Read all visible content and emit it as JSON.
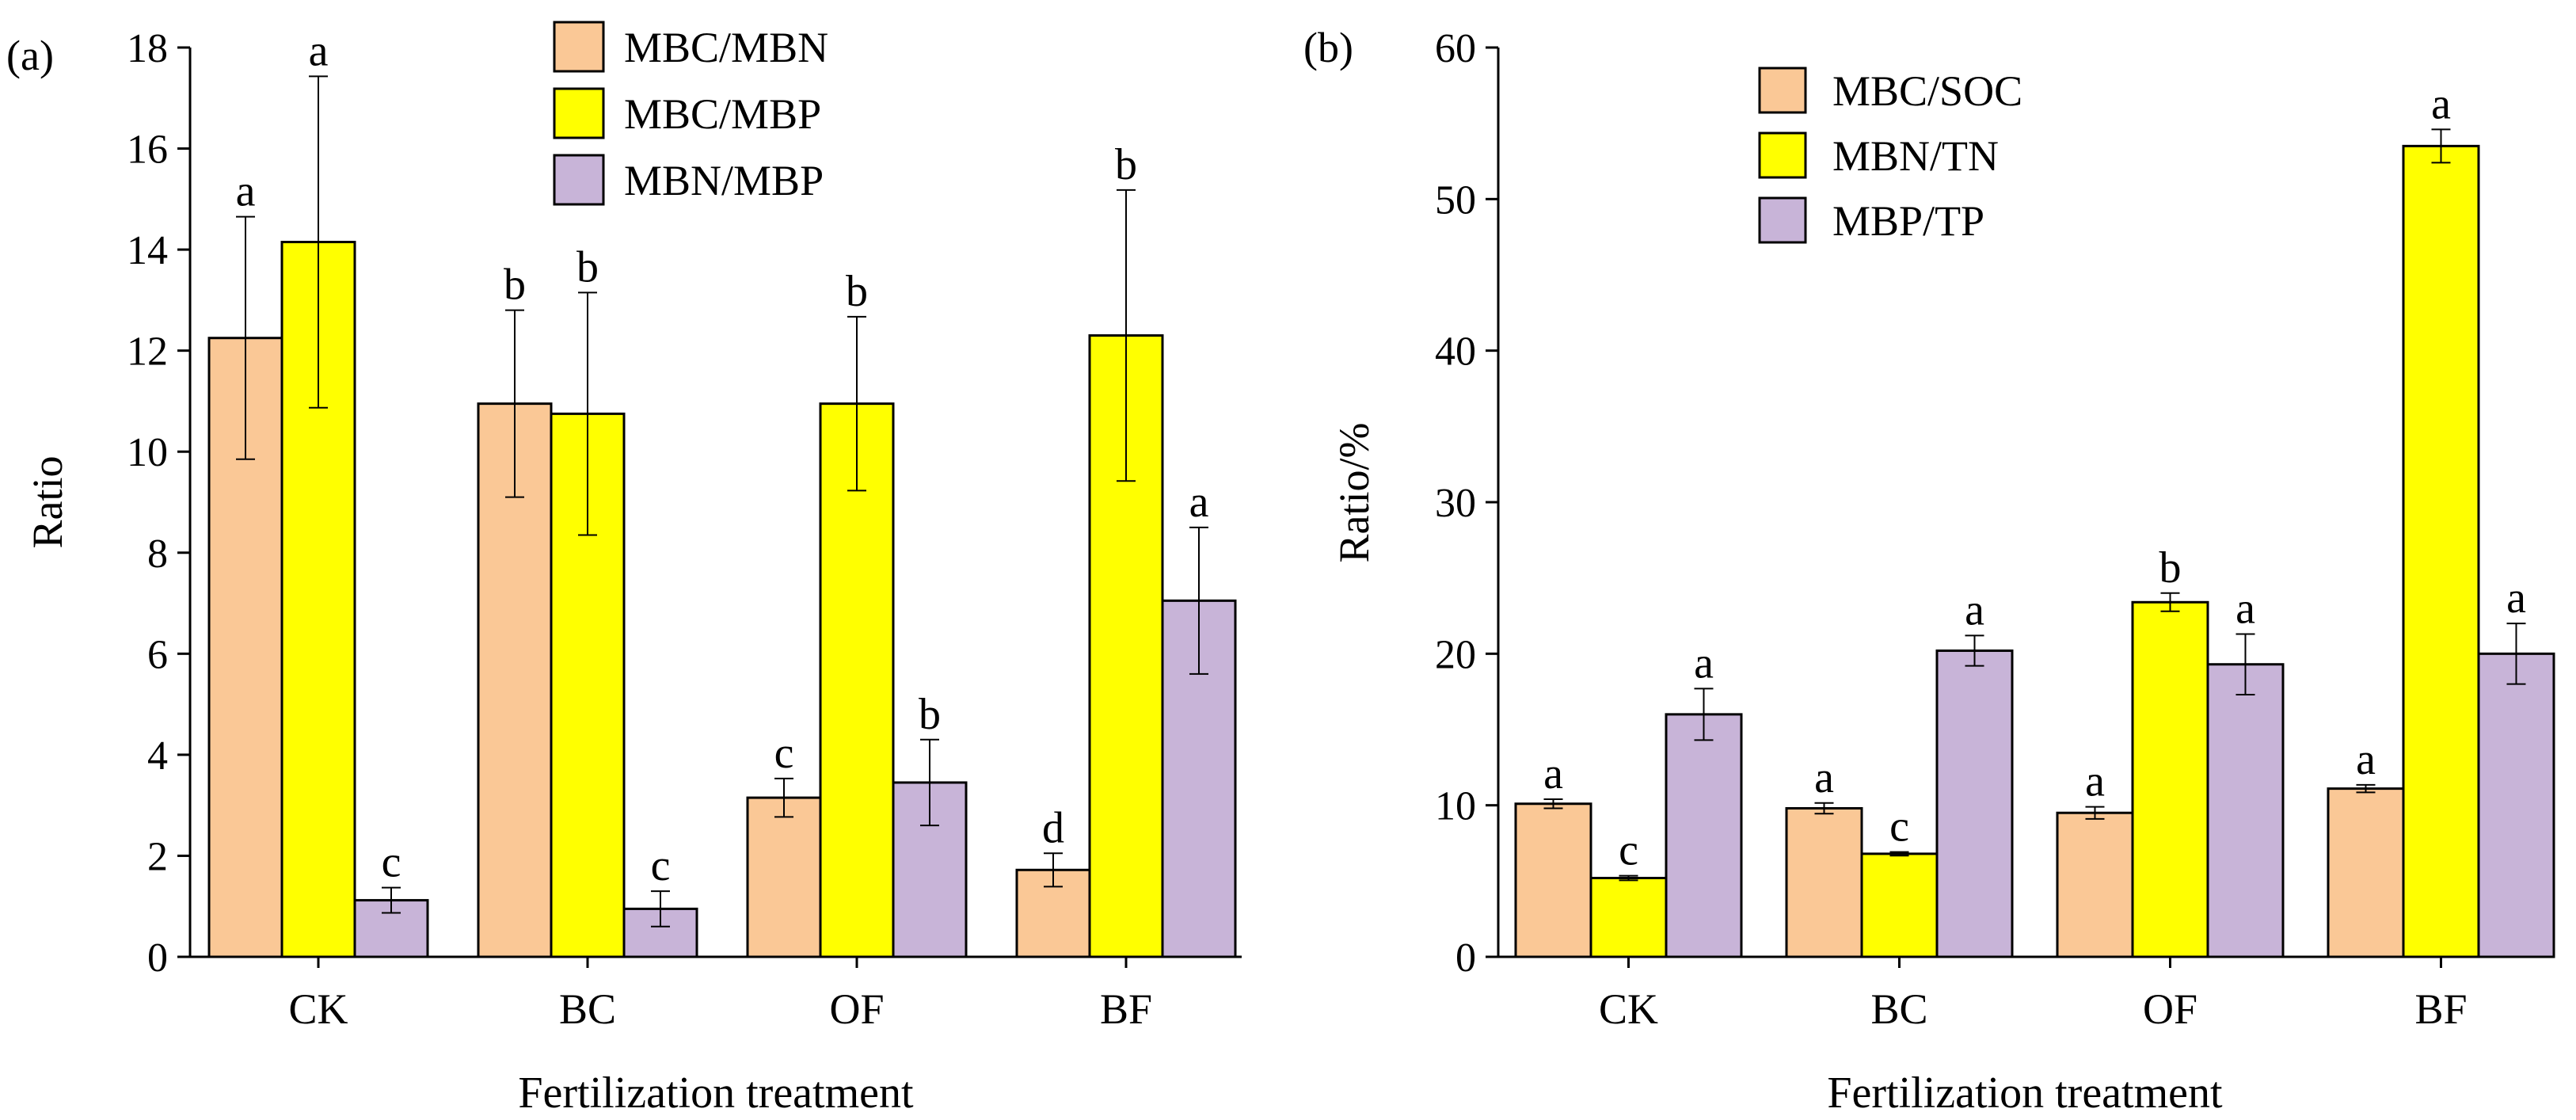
{
  "chart_data": [
    {
      "type": "bar",
      "panel_label": "(a)",
      "xlabel": "Fertilization treatment",
      "ylabel": "Ratio",
      "ylim": [
        0,
        18
      ],
      "yticks": [
        0,
        2,
        4,
        6,
        8,
        10,
        12,
        14,
        16,
        18
      ],
      "grid": false,
      "legend_position": "top-center",
      "categories": [
        "CK",
        "BC",
        "OF",
        "BF"
      ],
      "series": [
        {
          "name": "MBC/MBN",
          "color": "#FAC896",
          "values": [
            12.25,
            10.95,
            3.15,
            1.72
          ],
          "errors": [
            2.4,
            1.85,
            0.38,
            0.33
          ],
          "labels": [
            "a",
            "b",
            "c",
            "d"
          ]
        },
        {
          "name": "MBC/MBP",
          "color": "#FFFF00",
          "values": [
            14.15,
            10.75,
            10.95,
            12.3
          ],
          "errors": [
            3.28,
            2.4,
            1.72,
            2.88
          ],
          "labels": [
            "a",
            "b",
            "b",
            "b"
          ]
        },
        {
          "name": "MBN/MBP",
          "color": "#C8B4D8",
          "values": [
            1.12,
            0.95,
            3.45,
            7.05
          ],
          "errors": [
            0.25,
            0.35,
            0.85,
            1.45
          ],
          "labels": [
            "c",
            "c",
            "b",
            "a"
          ]
        }
      ]
    },
    {
      "type": "bar",
      "panel_label": "(b)",
      "xlabel": "Fertilization treatment",
      "ylabel": "Ratio/%",
      "ylim": [
        0,
        60
      ],
      "yticks": [
        0,
        10,
        20,
        30,
        40,
        50,
        60
      ],
      "grid": false,
      "legend_position": "top-left",
      "categories": [
        "CK",
        "BC",
        "OF",
        "BF"
      ],
      "series": [
        {
          "name": "MBC/SOC",
          "color": "#FAC896",
          "values": [
            10.1,
            9.8,
            9.5,
            11.1
          ],
          "errors": [
            0.3,
            0.35,
            0.4,
            0.25
          ],
          "labels": [
            "a",
            "a",
            "a",
            "a"
          ]
        },
        {
          "name": "MBN/TN",
          "color": "#FFFF00",
          "values": [
            5.2,
            6.8,
            23.4,
            53.5
          ],
          "errors": [
            0.15,
            0.12,
            0.6,
            1.1
          ],
          "labels": [
            "c",
            "c",
            "b",
            "a"
          ]
        },
        {
          "name": "MBP/TP",
          "color": "#C8B4D8",
          "values": [
            16.0,
            20.2,
            19.3,
            20.0
          ],
          "errors": [
            1.7,
            1.0,
            2.0,
            2.0
          ],
          "labels": [
            "a",
            "a",
            "a",
            "a"
          ]
        }
      ]
    }
  ]
}
